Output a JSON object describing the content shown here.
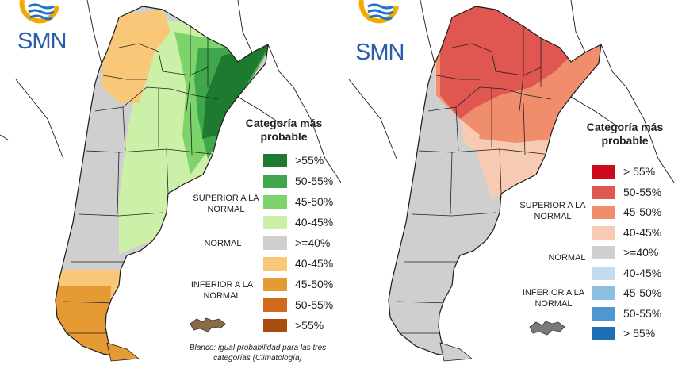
{
  "panels": [
    {
      "id": "left",
      "logo": {
        "text": "SMN",
        "icon": "smn-sun-waves-logo",
        "colors": {
          "sun": "#f2a900",
          "waves": "#1e73c8"
        }
      },
      "legend": {
        "title": "Categoría más probable",
        "groups": {
          "superior": "SUPERIOR A LA NORMAL",
          "normal": "NORMAL",
          "inferior": "INFERIOR A LA NORMAL"
        },
        "items": [
          {
            "label": ">55%",
            "color": "#1e7a2e"
          },
          {
            "label": "50-55%",
            "color": "#3ea64b"
          },
          {
            "label": "45-50%",
            "color": "#7ed36a"
          },
          {
            "label": "40-45%",
            "color": "#cdf0a8"
          },
          {
            "label": ">=40%",
            "color": "#cfcfcf"
          },
          {
            "label": "40-45%",
            "color": "#f8c777"
          },
          {
            "label": "45-50%",
            "color": "#e59a34"
          },
          {
            "label": "50-55%",
            "color": "#d2691a"
          },
          {
            "label": ">55%",
            "color": "#a84c0e"
          }
        ]
      },
      "note": "Blanco: igual probabilidad para las tres categorías (Climatología)"
    },
    {
      "id": "right",
      "logo": {
        "text": "SMN",
        "icon": "smn-sun-waves-logo",
        "colors": {
          "sun": "#f2a900",
          "waves": "#1e73c8"
        }
      },
      "legend": {
        "title": "Categoría más probable",
        "groups": {
          "superior": "SUPERIOR A LA NORMAL",
          "normal": "NORMAL",
          "inferior": "INFERIOR A LA NORMAL"
        },
        "items": [
          {
            "label": "> 55%",
            "color": "#cc0a1e"
          },
          {
            "label": "50-55%",
            "color": "#e05651"
          },
          {
            "label": "45-50%",
            "color": "#f08d6c"
          },
          {
            "label": "40-45%",
            "color": "#f7cbb3"
          },
          {
            "label": ">=40%",
            "color": "#cfcfcf"
          },
          {
            "label": "40-45%",
            "color": "#c2dbef"
          },
          {
            "label": "45-50%",
            "color": "#8ebee2"
          },
          {
            "label": "50-55%",
            "color": "#4f97cf"
          },
          {
            "label": "> 55%",
            "color": "#1a6fb5"
          }
        ]
      }
    }
  ],
  "map_colors": {
    "border": "#1a1a1a",
    "climatology": "#ffffff",
    "islands_left": "#8a6a44",
    "islands_right": "#7a7a7a"
  }
}
